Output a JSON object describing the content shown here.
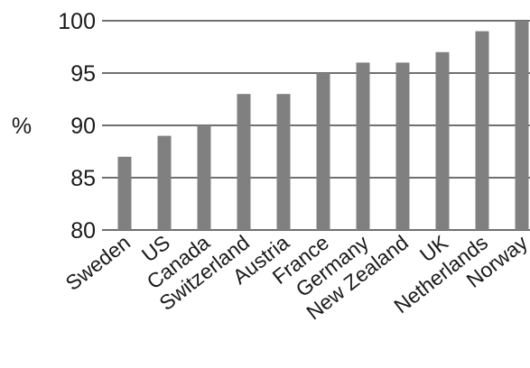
{
  "chart_data": {
    "type": "bar",
    "title": "",
    "xlabel": "",
    "ylabel": "%",
    "ylim": [
      80,
      100
    ],
    "yticks": [
      80,
      85,
      90,
      95,
      100
    ],
    "grid": true,
    "colors": {
      "bar": "#808080",
      "axis": "#1a1a1a"
    },
    "categories": [
      "Sweden",
      "US",
      "Canada",
      "Switzerland",
      "Austria",
      "France",
      "Germany",
      "New Zealand",
      "UK",
      "Netherlands",
      "Norway"
    ],
    "values": [
      87,
      89,
      90,
      93,
      93,
      95,
      96,
      96,
      97,
      99,
      100
    ]
  }
}
